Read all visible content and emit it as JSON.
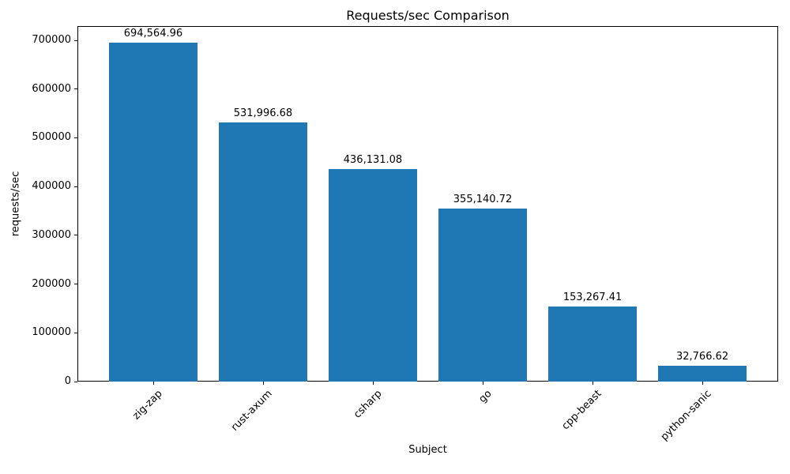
{
  "chart_data": {
    "type": "bar",
    "title": "Requests/sec Comparison",
    "xlabel": "Subject",
    "ylabel": "requests/sec",
    "categories": [
      "zig-zap",
      "rust-axum",
      "csharp",
      "go",
      "cpp-beast",
      "python-sanic"
    ],
    "values": [
      694564.96,
      531996.68,
      436131.08,
      355140.72,
      153267.41,
      32766.62
    ],
    "value_labels": [
      "694,564.96",
      "531,996.68",
      "436,131.08",
      "355,140.72",
      "153,267.41",
      "32,766.62"
    ],
    "yticks": [
      0,
      100000,
      200000,
      300000,
      400000,
      500000,
      600000,
      700000
    ],
    "ylim": [
      0,
      729293
    ],
    "xlim": [
      -0.69,
      5.69
    ],
    "bar_width": 0.8,
    "bar_color": "#1f77b4",
    "axis_color": "#000000",
    "background_color": "#ffffff",
    "grid": false,
    "legend": null,
    "x_tick_rotation_deg": 45
  }
}
